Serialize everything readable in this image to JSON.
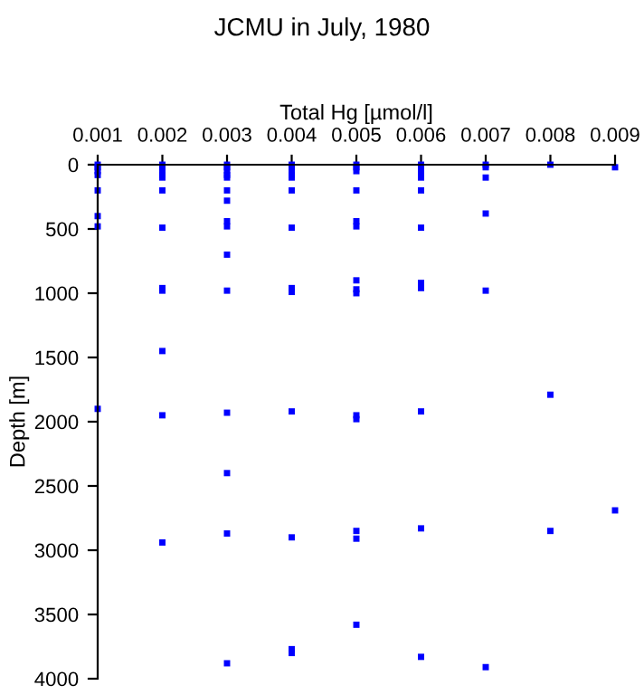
{
  "chart_data": {
    "type": "scatter",
    "title": "JCMU in July, 1980",
    "xlabel": "Total Hg [µmol/l]",
    "ylabel": "Depth [m]",
    "x": [
      0.001,
      0.001,
      0.001,
      0.001,
      0.001,
      0.001,
      0.001,
      0.001,
      0.002,
      0.002,
      0.002,
      0.002,
      0.002,
      0.002,
      0.002,
      0.002,
      0.002,
      0.002,
      0.002,
      0.002,
      0.003,
      0.003,
      0.003,
      0.003,
      0.003,
      0.003,
      0.003,
      0.003,
      0.003,
      0.003,
      0.003,
      0.003,
      0.003,
      0.003,
      0.003,
      0.004,
      0.004,
      0.004,
      0.004,
      0.004,
      0.004,
      0.004,
      0.004,
      0.004,
      0.004,
      0.004,
      0.004,
      0.004,
      0.005,
      0.005,
      0.005,
      0.005,
      0.005,
      0.005,
      0.005,
      0.005,
      0.005,
      0.005,
      0.005,
      0.005,
      0.005,
      0.005,
      0.006,
      0.006,
      0.006,
      0.006,
      0.006,
      0.006,
      0.006,
      0.006,
      0.006,
      0.006,
      0.006,
      0.006,
      0.007,
      0.007,
      0.007,
      0.007,
      0.007,
      0.007,
      0.008,
      0.008,
      0.008,
      0.009,
      0.009
    ],
    "series": [
      {
        "color": "#0000ff",
        "values": [
          0,
          20,
          50,
          80,
          200,
          400,
          480,
          1900,
          0,
          20,
          50,
          80,
          100,
          200,
          490,
          960,
          980,
          1450,
          1950,
          2940,
          0,
          20,
          50,
          80,
          100,
          200,
          280,
          440,
          480,
          700,
          980,
          1930,
          2400,
          2870,
          3880,
          0,
          20,
          50,
          80,
          100,
          200,
          490,
          960,
          990,
          1920,
          2900,
          3770,
          3800,
          0,
          20,
          50,
          200,
          440,
          480,
          900,
          970,
          1000,
          1950,
          1980,
          2850,
          2910,
          3580,
          0,
          20,
          50,
          80,
          100,
          200,
          490,
          920,
          960,
          1920,
          2830,
          3830,
          0,
          20,
          100,
          380,
          980,
          3910,
          0,
          1790,
          2850,
          20,
          2690
        ]
      }
    ],
    "xlim": [
      0.001,
      0.009
    ],
    "xticks": [
      {
        "value": 0.001,
        "label": "0.001"
      },
      {
        "value": 0.002,
        "label": "0.002"
      },
      {
        "value": 0.003,
        "label": "0.003"
      },
      {
        "value": 0.004,
        "label": "0.004"
      },
      {
        "value": 0.005,
        "label": "0.005"
      },
      {
        "value": 0.006,
        "label": "0.006"
      },
      {
        "value": 0.007,
        "label": "0.007"
      },
      {
        "value": 0.008,
        "label": "0.008"
      },
      {
        "value": 0.009,
        "label": "0.009"
      }
    ],
    "ylim": [
      4000,
      0
    ],
    "yticks": [
      0,
      500,
      1000,
      1500,
      2000,
      2500,
      3000,
      3500,
      4000
    ],
    "marker": "square",
    "grid": false
  }
}
